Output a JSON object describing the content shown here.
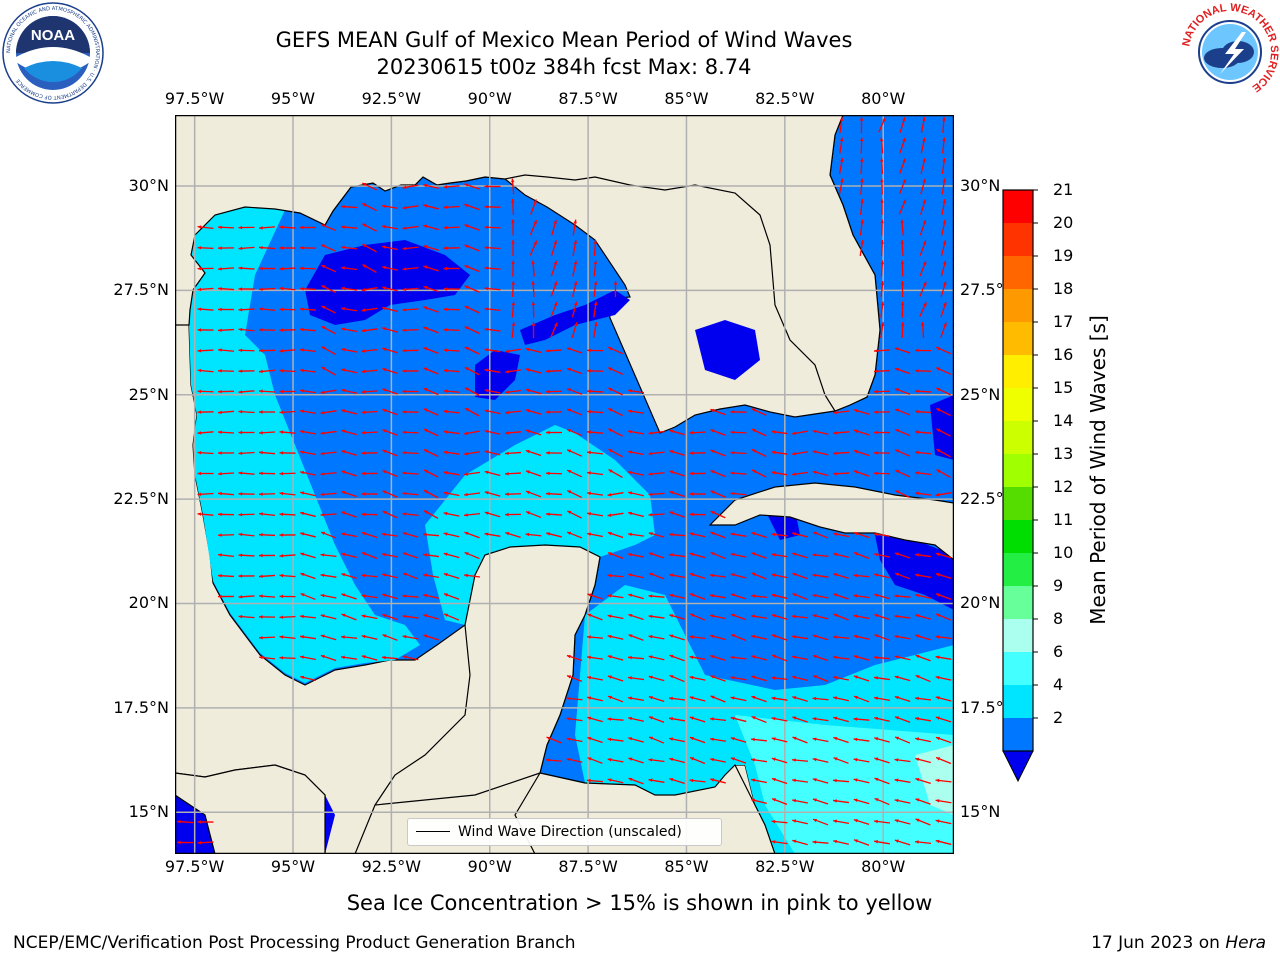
{
  "title": {
    "line1": "GEFS MEAN Gulf of Mexico Mean Period of Wind Waves",
    "line2": "20230615 t00z 384h fcst   Max: 8.74"
  },
  "map": {
    "top_lon_labels": [
      "97.5°W",
      "95°W",
      "92.5°W",
      "90°W",
      "87.5°W",
      "85°W",
      "82.5°W",
      "80°W"
    ],
    "bottom_lon_labels": [
      "97.5°W",
      "95°W",
      "92.5°W",
      "90°W",
      "87.5°W",
      "85°W",
      "82.5°W",
      "80°W"
    ],
    "left_lat_labels": [
      "30°N",
      "27.5°N",
      "25°N",
      "22.5°N",
      "20°N",
      "17.5°N",
      "15°N"
    ],
    "right_lat_labels": [
      "30°N",
      "27.5°",
      "25°N",
      "22.5°",
      "20°N",
      "17.5°",
      "15°N"
    ],
    "lon_range": [
      -98,
      -78.2
    ],
    "lat_range": [
      14,
      31.7
    ],
    "legend_label": "Wind Wave Direction (unscaled)",
    "colors": {
      "land": "#efecdc",
      "coast": "#000000",
      "grid": "#b0b0b0",
      "arrow": "#ff0000"
    }
  },
  "colorbar": {
    "label": "Mean Period of Wind Waves [s]",
    "ticks": [
      "21",
      "20",
      "19",
      "18",
      "17",
      "16",
      "15",
      "14",
      "13",
      "12",
      "11",
      "10",
      "9",
      "8",
      "6",
      "4",
      "2"
    ],
    "colors": [
      "#ff0000",
      "#ff3300",
      "#ff6600",
      "#ff9900",
      "#ffbb00",
      "#ffee00",
      "#f0ff00",
      "#ccff00",
      "#a0ff00",
      "#55dd00",
      "#00dd00",
      "#22ee44",
      "#66ff99",
      "#aaffee",
      "#44ffff",
      "#00e5ff",
      "#0077ff"
    ],
    "extend_color": "#0000ee"
  },
  "note": "Sea Ice Concentration > 15% is shown in pink to yellow",
  "footer": {
    "left": "NCEP/EMC/Verification Post Processing Product Generation Branch",
    "right_date": "17 Jun 2023 on ",
    "right_host": "Hera"
  },
  "logos": {
    "left_text": "NOAA",
    "left_ring": "NATIONAL OCEANIC AND ATMOSPHERIC ADMINISTRATION · U.S. DEPARTMENT OF COMMERCE",
    "right_ring": "NATIONAL WEATHER SERVICE"
  }
}
